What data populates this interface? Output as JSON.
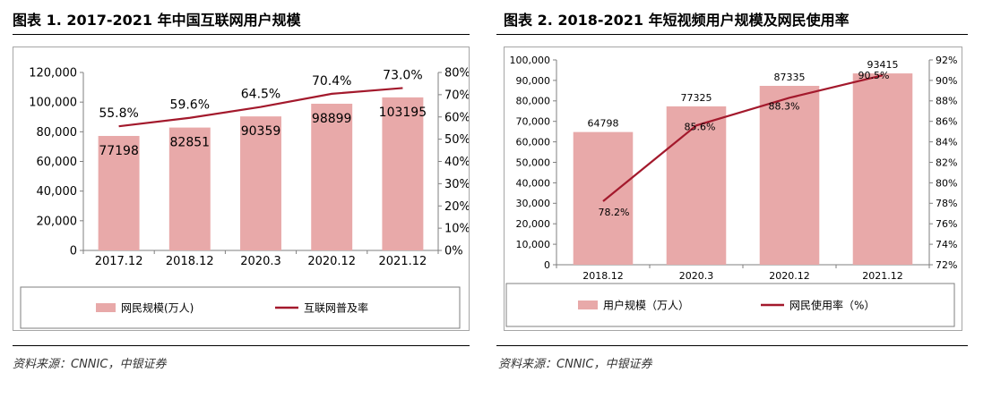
{
  "colors": {
    "bar": "#e8a9a9",
    "line": "#a3192c",
    "axis": "#7f7f7f",
    "box_border": "#a6a6a6"
  },
  "left": {
    "title": "图表 1. 2017-2021 年中国互联网用户规模",
    "source": "资料来源：CNNIC，中银证券"
  },
  "right": {
    "title": "图表 2. 2018-2021 年短视频用户规模及网民使用率",
    "source": "资料来源：CNNIC，中银证券"
  },
  "chart_data": [
    {
      "type": "bar",
      "categories": [
        "2017.12",
        "2018.12",
        "2020.3",
        "2020.12",
        "2021.12"
      ],
      "series": [
        {
          "name": "网民规模(万人)",
          "type": "bar",
          "axis": "left",
          "values": [
            77198,
            82851,
            90359,
            98899,
            103195
          ],
          "labels": [
            "77198",
            "82851",
            "90359",
            "98899",
            "103195"
          ]
        },
        {
          "name": "互联网普及率",
          "type": "line",
          "axis": "right",
          "values": [
            55.8,
            59.6,
            64.5,
            70.4,
            73.0
          ],
          "labels": [
            "55.8%",
            "59.6%",
            "64.5%",
            "70.4%",
            "73.0%"
          ]
        }
      ],
      "y_left": {
        "min": 0,
        "max": 120000,
        "step": 20000,
        "ticks": [
          "0",
          "20,000",
          "40,000",
          "60,000",
          "80,000",
          "100,000",
          "120,000"
        ]
      },
      "y_right": {
        "min": 0,
        "max": 80,
        "step": 10,
        "ticks": [
          "0%",
          "10%",
          "20%",
          "30%",
          "40%",
          "50%",
          "60%",
          "70%",
          "80%"
        ]
      },
      "grid": false,
      "legend_position": "bottom"
    },
    {
      "type": "bar",
      "categories": [
        "2018.12",
        "2020.3",
        "2020.12",
        "2021.12"
      ],
      "series": [
        {
          "name": "用户规模（万人）",
          "type": "bar",
          "axis": "left",
          "values": [
            64798,
            77325,
            87335,
            93415
          ],
          "labels": [
            "64798",
            "77325",
            "87335",
            "93415"
          ]
        },
        {
          "name": "网民使用率（%）",
          "type": "line",
          "axis": "right",
          "values": [
            78.2,
            85.6,
            88.3,
            90.5
          ],
          "labels": [
            "78.2%",
            "85.6%",
            "88.3%",
            "90.5%"
          ]
        }
      ],
      "y_left": {
        "min": 0,
        "max": 100000,
        "step": 10000,
        "ticks": [
          "0",
          "10,000",
          "20,000",
          "30,000",
          "40,000",
          "50,000",
          "60,000",
          "70,000",
          "80,000",
          "90,000",
          "100,000"
        ]
      },
      "y_right": {
        "min": 72,
        "max": 92,
        "step": 2,
        "ticks": [
          "72%",
          "74%",
          "76%",
          "78%",
          "80%",
          "82%",
          "84%",
          "86%",
          "88%",
          "90%",
          "92%"
        ]
      },
      "grid": false,
      "legend_position": "bottom"
    }
  ]
}
